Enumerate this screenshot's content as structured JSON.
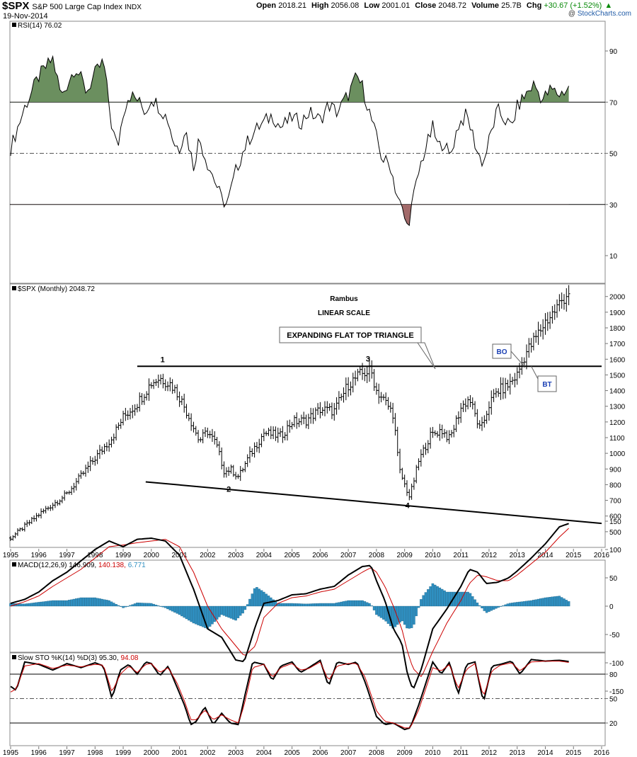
{
  "header": {
    "symbol": "$SPX",
    "name": "S&P 500 Large Cap Index",
    "exchange": "INDX",
    "date": "19-Nov-2014",
    "open_label": "Open",
    "open": "2018.21",
    "high_label": "High",
    "high": "2056.08",
    "low_label": "Low",
    "low": "2001.01",
    "close_label": "Close",
    "close": "2048.72",
    "volume_label": "Volume",
    "volume": "25.7B",
    "chg_label": "Chg",
    "chg": "+30.67 (+1.52%)",
    "chg_arrow": "▲",
    "credit_prefix": "@",
    "credit": "StockCharts.com",
    "chg_color": "#0a8a0a"
  },
  "chart_data": [
    {
      "type": "line",
      "id": "rsi",
      "title": "RSI(14) 76.02",
      "y_ticks": [
        10,
        30,
        50,
        70,
        90
      ],
      "ylim": [
        0,
        100
      ],
      "overbought": 70,
      "oversold": 30,
      "mid": 50,
      "fill_colors": {
        "overbought": "#6b8f5f",
        "oversold": "#a26a6a"
      },
      "x": [
        1995.0,
        1995.5,
        1996.0,
        1996.5,
        1996.8,
        1997.3,
        1997.7,
        1998.0,
        1998.3,
        1998.6,
        1998.8,
        1999.0,
        1999.2,
        1999.5,
        1999.8,
        2000.0,
        2000.3,
        2000.6,
        2000.8,
        2001.0,
        2001.2,
        2001.5,
        2001.7,
        2002.0,
        2002.2,
        2002.5,
        2002.7,
        2003.0,
        2003.3,
        2003.6,
        2004.0,
        2004.3,
        2004.6,
        2005.0,
        2005.3,
        2005.6,
        2006.0,
        2006.3,
        2006.6,
        2007.0,
        2007.3,
        2007.5,
        2007.8,
        2008.0,
        2008.2,
        2008.5,
        2008.7,
        2008.9,
        2009.1,
        2009.3,
        2009.6,
        2010.0,
        2010.2,
        2010.4,
        2010.6,
        2010.9,
        2011.2,
        2011.4,
        2011.6,
        2011.8,
        2012.0,
        2012.3,
        2012.5,
        2012.8,
        2013.0,
        2013.3,
        2013.6,
        2013.9,
        2014.2,
        2014.5,
        2014.89
      ],
      "values": [
        52,
        68,
        80,
        87,
        72,
        84,
        74,
        81,
        86,
        60,
        52,
        66,
        73,
        71,
        66,
        72,
        68,
        63,
        54,
        52,
        60,
        45,
        56,
        46,
        41,
        32,
        30,
        43,
        52,
        58,
        62,
        65,
        60,
        64,
        62,
        66,
        63,
        69,
        66,
        73,
        80,
        76,
        64,
        56,
        48,
        45,
        35,
        28,
        21,
        32,
        47,
        60,
        52,
        55,
        48,
        61,
        65,
        58,
        50,
        46,
        55,
        67,
        64,
        60,
        68,
        73,
        77,
        71,
        75,
        73,
        76
      ]
    },
    {
      "type": "bar",
      "id": "price",
      "title": "$SPX (Monthly) 2048.72",
      "subtitle": "Rambus",
      "scale_label": "LINEAR SCALE",
      "y_ticks": [
        500,
        600,
        700,
        800,
        900,
        1000,
        1100,
        1200,
        1300,
        1400,
        1500,
        1600,
        1700,
        1800,
        1900,
        2000
      ],
      "ylim": [
        400,
        2080
      ],
      "x_ticks": [
        "1995",
        "1996",
        "1997",
        "1998",
        "1999",
        "2000",
        "2001",
        "2002",
        "2003",
        "2004",
        "2005",
        "2006",
        "2007",
        "2008",
        "2009",
        "2010",
        "2011",
        "2012",
        "2013",
        "2014",
        "2015",
        "2016"
      ],
      "xlim": [
        1995.0,
        2016.0
      ],
      "anchors_x": [
        1995.0,
        1996.0,
        1997.0,
        1998.0,
        1998.6,
        1999.0,
        1999.5,
        2000.0,
        2000.3,
        2000.7,
        2001.0,
        2001.3,
        2001.7,
        2002.0,
        2002.3,
        2002.6,
        2002.8,
        2003.1,
        2003.5,
        2004.0,
        2004.6,
        2005.0,
        2005.5,
        2006.0,
        2006.5,
        2007.0,
        2007.4,
        2007.8,
        2008.0,
        2008.3,
        2008.6,
        2008.8,
        2009.0,
        2009.18,
        2009.5,
        2009.9,
        2010.3,
        2010.6,
        2011.0,
        2011.3,
        2011.7,
        2012.0,
        2012.3,
        2012.6,
        2013.0,
        2013.3,
        2013.5,
        2014.0,
        2014.3,
        2014.6,
        2014.9
      ],
      "anchors_close": [
        460,
        610,
        740,
        970,
        1100,
        1230,
        1320,
        1450,
        1480,
        1440,
        1360,
        1250,
        1080,
        1140,
        1060,
        880,
        900,
        850,
        990,
        1130,
        1110,
        1200,
        1210,
        1280,
        1270,
        1440,
        1500,
        1530,
        1400,
        1330,
        1250,
        900,
        800,
        720,
        950,
        1110,
        1150,
        1090,
        1290,
        1350,
        1140,
        1310,
        1400,
        1420,
        1500,
        1640,
        1690,
        1840,
        1900,
        1980,
        2048.72
      ],
      "bo_x": 2013.25,
      "bt_x": 2013.5,
      "annotations": {
        "pivot_1": "1",
        "pivot_2": "2",
        "pivot_3": "3",
        "pivot_4": "4",
        "callout": "EXPANDING FLAT TOP TRIANGLE",
        "bo": "BO",
        "bt": "BT"
      },
      "flat_top": {
        "x0": 1999.5,
        "x1": 2016.0,
        "y": 1555
      },
      "bottom_line": {
        "x0": 1999.8,
        "y0": 818,
        "x1": 2016.0,
        "y1": 553
      }
    },
    {
      "type": "line",
      "id": "macd",
      "title_prefix": "MACD(12,26,9)",
      "macd_value": "146.909",
      "signal_value": "140.138",
      "hist_value": "6.771",
      "colors": {
        "macd": "#000000",
        "signal": "#cc0000",
        "hist": "#2f8fc0"
      },
      "y_ticks": [
        -150,
        -100,
        -50,
        0,
        50,
        100,
        150
      ],
      "ylim": [
        -155,
        165
      ],
      "x": [
        1995.0,
        1995.5,
        1996.0,
        1996.5,
        1997.0,
        1997.5,
        1998.0,
        1998.5,
        1999.0,
        1999.5,
        2000.0,
        2000.5,
        2001.0,
        2001.5,
        2002.0,
        2002.5,
        2003.0,
        2003.3,
        2003.7,
        2004.0,
        2004.5,
        2005.0,
        2005.5,
        2006.0,
        2006.5,
        2007.0,
        2007.5,
        2007.8,
        2008.0,
        2008.3,
        2008.6,
        2008.9,
        2009.1,
        2009.3,
        2009.6,
        2010.0,
        2010.5,
        2011.0,
        2011.3,
        2011.6,
        2011.9,
        2012.3,
        2012.7,
        2013.0,
        2013.5,
        2014.0,
        2014.5,
        2014.89
      ],
      "macd": [
        5,
        12,
        25,
        45,
        60,
        80,
        100,
        115,
        105,
        118,
        120,
        115,
        90,
        30,
        -40,
        -55,
        -95,
        -98,
        -35,
        5,
        10,
        20,
        22,
        30,
        35,
        55,
        70,
        72,
        45,
        10,
        -40,
        -65,
        -120,
        -148,
        -110,
        -40,
        -5,
        35,
        65,
        60,
        40,
        42,
        50,
        62,
        85,
        110,
        140,
        146.909
      ],
      "signal": [
        0,
        8,
        18,
        35,
        50,
        65,
        85,
        105,
        108,
        112,
        115,
        118,
        105,
        60,
        0,
        -40,
        -70,
        -88,
        -70,
        -20,
        5,
        15,
        18,
        25,
        30,
        45,
        60,
        68,
        60,
        35,
        0,
        -40,
        -80,
        -110,
        -125,
        -80,
        -30,
        10,
        40,
        55,
        52,
        45,
        45,
        55,
        75,
        95,
        122,
        140.138
      ]
    },
    {
      "type": "line",
      "id": "sto",
      "title_prefix": "Slow STO %K(14) %D(3)",
      "k_value": "95.30",
      "d_value": "94.08",
      "colors": {
        "k": "#000000",
        "d": "#cc0000"
      },
      "y_ticks": [
        20,
        50,
        80
      ],
      "ylim": [
        0,
        100
      ],
      "x": [
        1995.0,
        1995.2,
        1995.5,
        1996.0,
        1996.5,
        1997.0,
        1997.5,
        1998.0,
        1998.3,
        1998.6,
        1998.9,
        1999.2,
        1999.5,
        1999.8,
        2000.0,
        2000.3,
        2000.6,
        2000.9,
        2001.2,
        2001.4,
        2001.6,
        2001.9,
        2002.2,
        2002.5,
        2002.8,
        2003.1,
        2003.3,
        2003.6,
        2004.0,
        2004.3,
        2004.6,
        2005.0,
        2005.3,
        2005.6,
        2006.0,
        2006.3,
        2006.6,
        2007.0,
        2007.3,
        2007.6,
        2008.0,
        2008.3,
        2008.6,
        2009.0,
        2009.2,
        2009.5,
        2010.0,
        2010.3,
        2010.6,
        2010.9,
        2011.2,
        2011.5,
        2011.8,
        2012.1,
        2012.4,
        2012.8,
        2013.1,
        2013.5,
        2014.0,
        2014.5,
        2014.89
      ],
      "k": [
        65,
        60,
        95,
        92,
        85,
        93,
        88,
        94,
        90,
        50,
        85,
        92,
        80,
        95,
        93,
        78,
        90,
        65,
        40,
        18,
        22,
        40,
        18,
        32,
        20,
        18,
        50,
        95,
        92,
        72,
        90,
        95,
        82,
        88,
        97,
        65,
        95,
        92,
        95,
        70,
        28,
        18,
        20,
        12,
        14,
        42,
        95,
        80,
        95,
        55,
        92,
        95,
        45,
        90,
        92,
        96,
        80,
        98,
        96,
        97,
        95.3
      ],
      "d": [
        58,
        62,
        90,
        93,
        87,
        91,
        89,
        92,
        91,
        58,
        80,
        90,
        82,
        92,
        93,
        82,
        88,
        70,
        45,
        24,
        24,
        36,
        24,
        30,
        24,
        20,
        42,
        88,
        92,
        76,
        88,
        93,
        85,
        87,
        95,
        72,
        90,
        93,
        93,
        76,
        35,
        22,
        20,
        14,
        14,
        36,
        88,
        84,
        92,
        62,
        86,
        93,
        52,
        84,
        91,
        94,
        84,
        95,
        96,
        96,
        94.08
      ]
    }
  ]
}
